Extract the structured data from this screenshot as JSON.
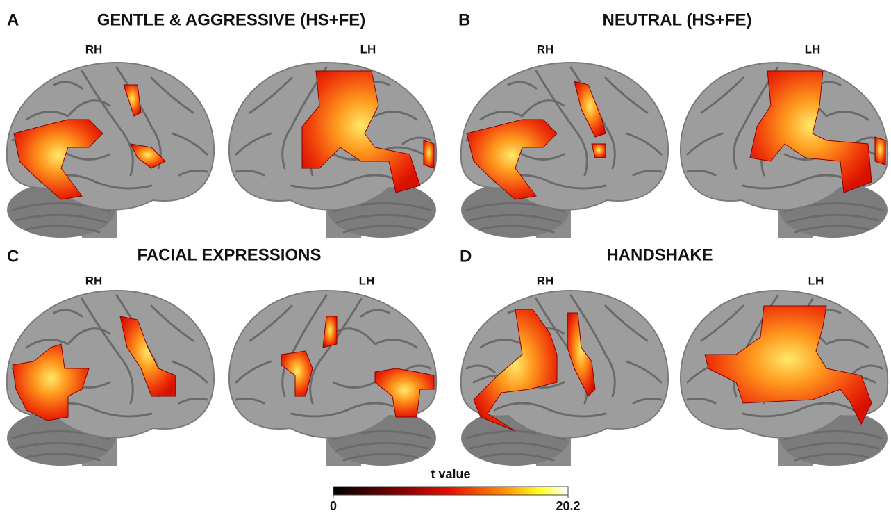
{
  "panels": [
    {
      "letter": "A",
      "title": "GENTLE & AGGRESSIVE (HS+FE)",
      "left": "RH",
      "right": "LH"
    },
    {
      "letter": "B",
      "title": "NEUTRAL (HS+FE)",
      "left": "RH",
      "right": "LH"
    },
    {
      "letter": "C",
      "title": "FACIAL EXPRESSIONS",
      "left": "RH",
      "right": "LH"
    },
    {
      "letter": "D",
      "title": "HANDSHAKE",
      "left": "RH",
      "right": "LH"
    }
  ],
  "colorbar": {
    "label": "t value",
    "lim": [
      0,
      20.2
    ],
    "ticks": [
      0,
      20.2
    ]
  }
}
